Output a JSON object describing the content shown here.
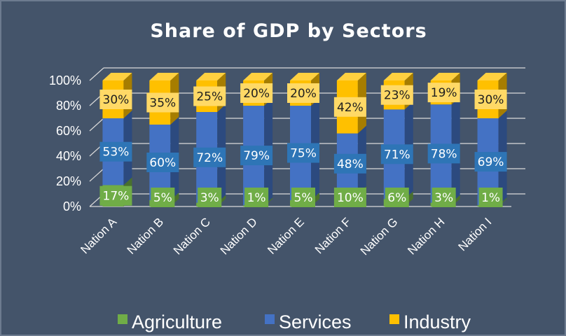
{
  "chart_data": {
    "type": "bar",
    "stacked": true,
    "percent_stacked": true,
    "three_d": true,
    "title": "Share of GDP by Sectors",
    "xlabel": "",
    "ylabel": "",
    "ylim": [
      0,
      100
    ],
    "yticks": [
      "0%",
      "20%",
      "40%",
      "60%",
      "80%",
      "100%"
    ],
    "grid": true,
    "legend_position": "bottom",
    "categories": [
      "Nation A",
      "Nation B",
      "Nation C",
      "Nation D",
      "Nation E",
      "Nation F",
      "Nation G",
      "Nation H",
      "Nation I"
    ],
    "series": [
      {
        "name": "Agriculture",
        "values": [
          17,
          5,
          3,
          1,
          5,
          10,
          6,
          3,
          1
        ],
        "labels": [
          "17%",
          "5%",
          "3%",
          "1%",
          "5%",
          "10%",
          "6%",
          "3%",
          "1%"
        ],
        "color": "#70ad47",
        "label_bg": "#70ad47",
        "label_color": "#ffffff"
      },
      {
        "name": "Services",
        "values": [
          53,
          60,
          72,
          79,
          75,
          48,
          71,
          78,
          69
        ],
        "labels": [
          "53%",
          "60%",
          "72%",
          "79%",
          "75%",
          "48%",
          "71%",
          "78%",
          "69%"
        ],
        "color": "#4472c4",
        "label_bg": "#2e75b6",
        "label_color": "#ffffff"
      },
      {
        "name": "Industry",
        "values": [
          30,
          35,
          25,
          20,
          20,
          42,
          23,
          19,
          30
        ],
        "labels": [
          "30%",
          "35%",
          "25%",
          "20%",
          "20%",
          "42%",
          "23%",
          "19%",
          "30%"
        ],
        "color": "#ffc000",
        "label_bg": "#ffd966",
        "label_color": "#1f1f1f"
      }
    ]
  },
  "colors": {
    "background": "#44546a",
    "border": "#6d7b8f",
    "gridline": "#d9d9d9",
    "text": "#ffffff"
  }
}
